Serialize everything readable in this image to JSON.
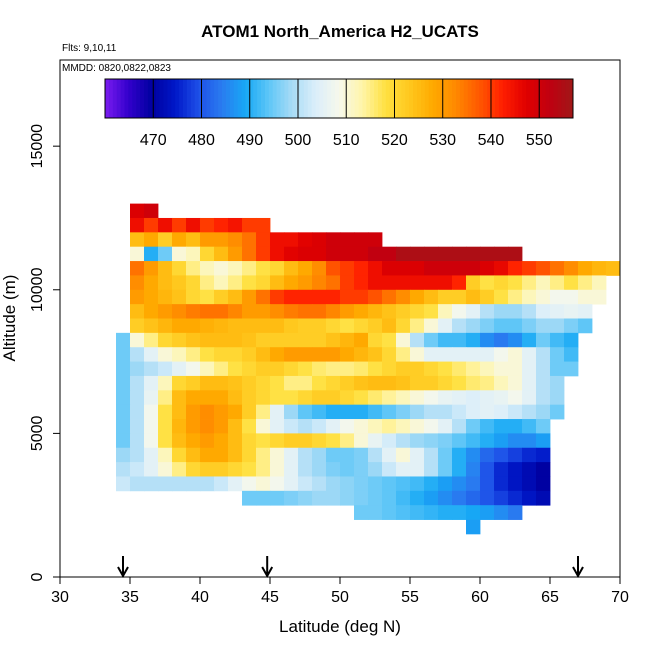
{
  "chart_data": {
    "type": "heatmap",
    "title": "ATOM1 North_America H2_UCATS",
    "annotations": [
      "Flts: 9,10,11",
      "MMDD: 0820,0822,0823"
    ],
    "xlabel": "Latitude (deg N)",
    "ylabel": "Altitude (m)",
    "xlim": [
      30,
      70
    ],
    "ylim": [
      0,
      18000
    ],
    "xticks": [
      30,
      35,
      40,
      45,
      50,
      55,
      60,
      65,
      70
    ],
    "yticks": [
      0,
      5000,
      10000,
      15000
    ],
    "colorbar": {
      "ticks": [
        470,
        480,
        490,
        500,
        510,
        520,
        530,
        540,
        550
      ],
      "range": [
        460,
        557
      ],
      "colors": [
        "#7b1cf0",
        "#3300cc",
        "#0000a0",
        "#0018c8",
        "#1e50e8",
        "#2a7cf0",
        "#17a8f5",
        "#5ec6f7",
        "#a8dcf6",
        "#dbeefa",
        "#f6f8ec",
        "#fff5a8",
        "#ffe040",
        "#ffc81e",
        "#ffaa00",
        "#ff8800",
        "#ff5800",
        "#ff1e00",
        "#e00000",
        "#c00010",
        "#a01818"
      ]
    },
    "flight_markers_latitude": [
      34.5,
      44.8,
      67.0
    ],
    "grid": false,
    "cell_size": {
      "lat_deg": 1,
      "alt_m": 500
    },
    "bands": [
      {
        "alt": 12750,
        "lat_from": 35,
        "lat_to": 37,
        "values": [
          548,
          550
        ]
      },
      {
        "alt": 12250,
        "lat_from": 35,
        "lat_to": 45,
        "values": [
          545,
          540,
          545,
          540,
          545,
          540,
          542,
          544,
          540,
          540
        ]
      },
      {
        "alt": 11750,
        "lat_from": 35,
        "lat_to": 53,
        "values": [
          525,
          528,
          522,
          528,
          525,
          530,
          530,
          532,
          535,
          540,
          545,
          545,
          547,
          548,
          550,
          550,
          550,
          550
        ]
      },
      {
        "alt": 11250,
        "lat_from": 35,
        "lat_to": 63,
        "values": [
          510,
          490,
          495,
          510,
          512,
          520,
          525,
          530,
          535,
          540,
          545,
          547,
          548,
          548,
          550,
          550,
          550,
          552,
          552,
          555,
          555,
          555,
          555,
          555,
          555,
          555,
          555,
          555
        ]
      },
      {
        "alt": 10750,
        "lat_from": 35,
        "lat_to": 70,
        "values": [
          535,
          530,
          525,
          520,
          515,
          512,
          510,
          512,
          515,
          518,
          520,
          525,
          528,
          532,
          538,
          540,
          542,
          545,
          548,
          548,
          548,
          550,
          550,
          550,
          550,
          548,
          546,
          542,
          540,
          538,
          535,
          532,
          528,
          526,
          525
        ]
      },
      {
        "alt": 10250,
        "lat_from": 35,
        "lat_to": 69,
        "values": [
          532,
          528,
          525,
          523,
          520,
          515,
          512,
          515,
          518,
          520,
          525,
          528,
          530,
          533,
          535,
          540,
          542,
          545,
          545,
          545,
          545,
          545,
          545,
          542,
          522,
          518,
          520,
          518,
          515,
          512,
          515,
          518,
          515,
          512
        ]
      },
      {
        "alt": 9750,
        "lat_from": 35,
        "lat_to": 69,
        "values": [
          530,
          528,
          526,
          524,
          520,
          518,
          522,
          525,
          530,
          535,
          540,
          542,
          542,
          542,
          542,
          540,
          540,
          538,
          535,
          532,
          528,
          525,
          522,
          522,
          525,
          522,
          518,
          515,
          512,
          510,
          508,
          508,
          510,
          510
        ]
      },
      {
        "alt": 9250,
        "lat_from": 35,
        "lat_to": 68,
        "values": [
          525,
          528,
          530,
          532,
          534,
          535,
          535,
          533,
          530,
          530,
          532,
          534,
          535,
          535,
          533,
          530,
          528,
          526,
          524,
          522,
          520,
          518,
          512,
          508,
          505,
          500,
          498,
          498,
          500,
          504,
          505,
          506,
          505
        ]
      },
      {
        "alt": 8750,
        "lat_from": 35,
        "lat_to": 68,
        "values": [
          522,
          524,
          526,
          528,
          528,
          527,
          526,
          525,
          525,
          525,
          525,
          523,
          522,
          522,
          520,
          518,
          520,
          522,
          525,
          520,
          515,
          510,
          505,
          500,
          498,
          496,
          494,
          494,
          496,
          498,
          498,
          496,
          494
        ]
      },
      {
        "alt": 8250,
        "lat_from": 34,
        "lat_to": 67,
        "values": [
          495,
          510,
          515,
          520,
          522,
          524,
          525,
          525,
          525,
          524,
          522,
          522,
          522,
          522,
          522,
          524,
          526,
          528,
          520,
          518,
          510,
          500,
          495,
          492,
          492,
          490,
          486,
          484,
          486,
          490,
          495,
          492,
          490
        ]
      },
      {
        "alt": 7750,
        "lat_from": 34,
        "lat_to": 67,
        "values": [
          495,
          500,
          505,
          510,
          512,
          515,
          518,
          520,
          520,
          522,
          525,
          528,
          530,
          530,
          530,
          530,
          528,
          526,
          524,
          520,
          515,
          510,
          505,
          505,
          505,
          505,
          505,
          508,
          510,
          505,
          500,
          495,
          492
        ]
      },
      {
        "alt": 7250,
        "lat_from": 34,
        "lat_to": 67,
        "values": [
          495,
          498,
          500,
          502,
          505,
          508,
          512,
          515,
          518,
          520,
          522,
          522,
          520,
          518,
          516,
          515,
          515,
          516,
          518,
          520,
          522,
          522,
          520,
          518,
          516,
          514,
          512,
          510,
          510,
          505,
          500,
          495,
          495
        ]
      },
      {
        "alt": 6750,
        "lat_from": 34,
        "lat_to": 66,
        "values": [
          495,
          500,
          505,
          512,
          520,
          522,
          525,
          525,
          524,
          522,
          520,
          518,
          515,
          515,
          518,
          520,
          522,
          524,
          525,
          525,
          524,
          522,
          522,
          520,
          518,
          516,
          515,
          512,
          510,
          505,
          500,
          498
        ]
      },
      {
        "alt": 6250,
        "lat_from": 34,
        "lat_to": 66,
        "values": [
          495,
          500,
          506,
          515,
          525,
          528,
          528,
          528,
          525,
          522,
          520,
          518,
          518,
          520,
          522,
          522,
          520,
          518,
          516,
          514,
          512,
          510,
          508,
          506,
          505,
          504,
          505,
          506,
          508,
          505,
          500,
          498
        ]
      },
      {
        "alt": 5750,
        "lat_from": 34,
        "lat_to": 66,
        "values": [
          495,
          500,
          508,
          518,
          525,
          530,
          532,
          530,
          528,
          522,
          515,
          505,
          498,
          494,
          492,
          490,
          490,
          490,
          492,
          494,
          496,
          498,
          500,
          500,
          502,
          504,
          505,
          504,
          502,
          500,
          498,
          495
        ]
      },
      {
        "alt": 5250,
        "lat_from": 34,
        "lat_to": 65,
        "values": [
          495,
          500,
          508,
          518,
          526,
          530,
          532,
          530,
          525,
          518,
          510,
          505,
          502,
          500,
          502,
          505,
          508,
          510,
          512,
          514,
          512,
          510,
          508,
          505,
          500,
          495,
          492,
          490,
          490,
          492,
          495
        ]
      },
      {
        "alt": 4750,
        "lat_from": 34,
        "lat_to": 65,
        "values": [
          495,
          500,
          508,
          518,
          525,
          528,
          530,
          528,
          525,
          520,
          518,
          520,
          522,
          522,
          520,
          518,
          515,
          510,
          506,
          503,
          500,
          498,
          497,
          496,
          494,
          492,
          490,
          488,
          486,
          486,
          488
        ]
      },
      {
        "alt": 4250,
        "lat_from": 34,
        "lat_to": 65,
        "values": [
          498,
          500,
          505,
          512,
          520,
          525,
          528,
          528,
          525,
          520,
          515,
          510,
          505,
          500,
          498,
          495,
          495,
          496,
          500,
          505,
          510,
          505,
          500,
          495,
          490,
          486,
          482,
          480,
          478,
          476,
          475
        ]
      },
      {
        "alt": 3750,
        "lat_from": 34,
        "lat_to": 65,
        "values": [
          500,
          502,
          505,
          510,
          515,
          520,
          522,
          522,
          520,
          518,
          515,
          510,
          505,
          500,
          498,
          496,
          495,
          496,
          498,
          502,
          505,
          505,
          500,
          495,
          490,
          485,
          480,
          476,
          474,
          472,
          470
        ]
      },
      {
        "alt": 3250,
        "lat_from": 34,
        "lat_to": 65,
        "values": [
          502,
          500,
          500,
          500,
          500,
          500,
          500,
          502,
          505,
          508,
          510,
          508,
          505,
          502,
          500,
          498,
          497,
          496,
          495,
          494,
          493,
          492,
          490,
          488,
          486,
          484,
          480,
          476,
          474,
          472,
          470
        ]
      },
      {
        "alt": 2750,
        "lat_from": 43,
        "lat_to": 65,
        "values": [
          495,
          495,
          495,
          496,
          497,
          498,
          498,
          497,
          496,
          495,
          494,
          492,
          490,
          488,
          486,
          484,
          482,
          480,
          478,
          476,
          474,
          472
        ]
      },
      {
        "alt": 2250,
        "lat_from": 51,
        "lat_to": 63,
        "values": [
          495,
          495,
          494,
          493,
          492,
          491,
          490,
          490,
          489,
          488,
          486,
          484
        ]
      },
      {
        "alt": 1750,
        "lat_from": 59,
        "lat_to": 60,
        "values": [
          488
        ]
      }
    ]
  }
}
